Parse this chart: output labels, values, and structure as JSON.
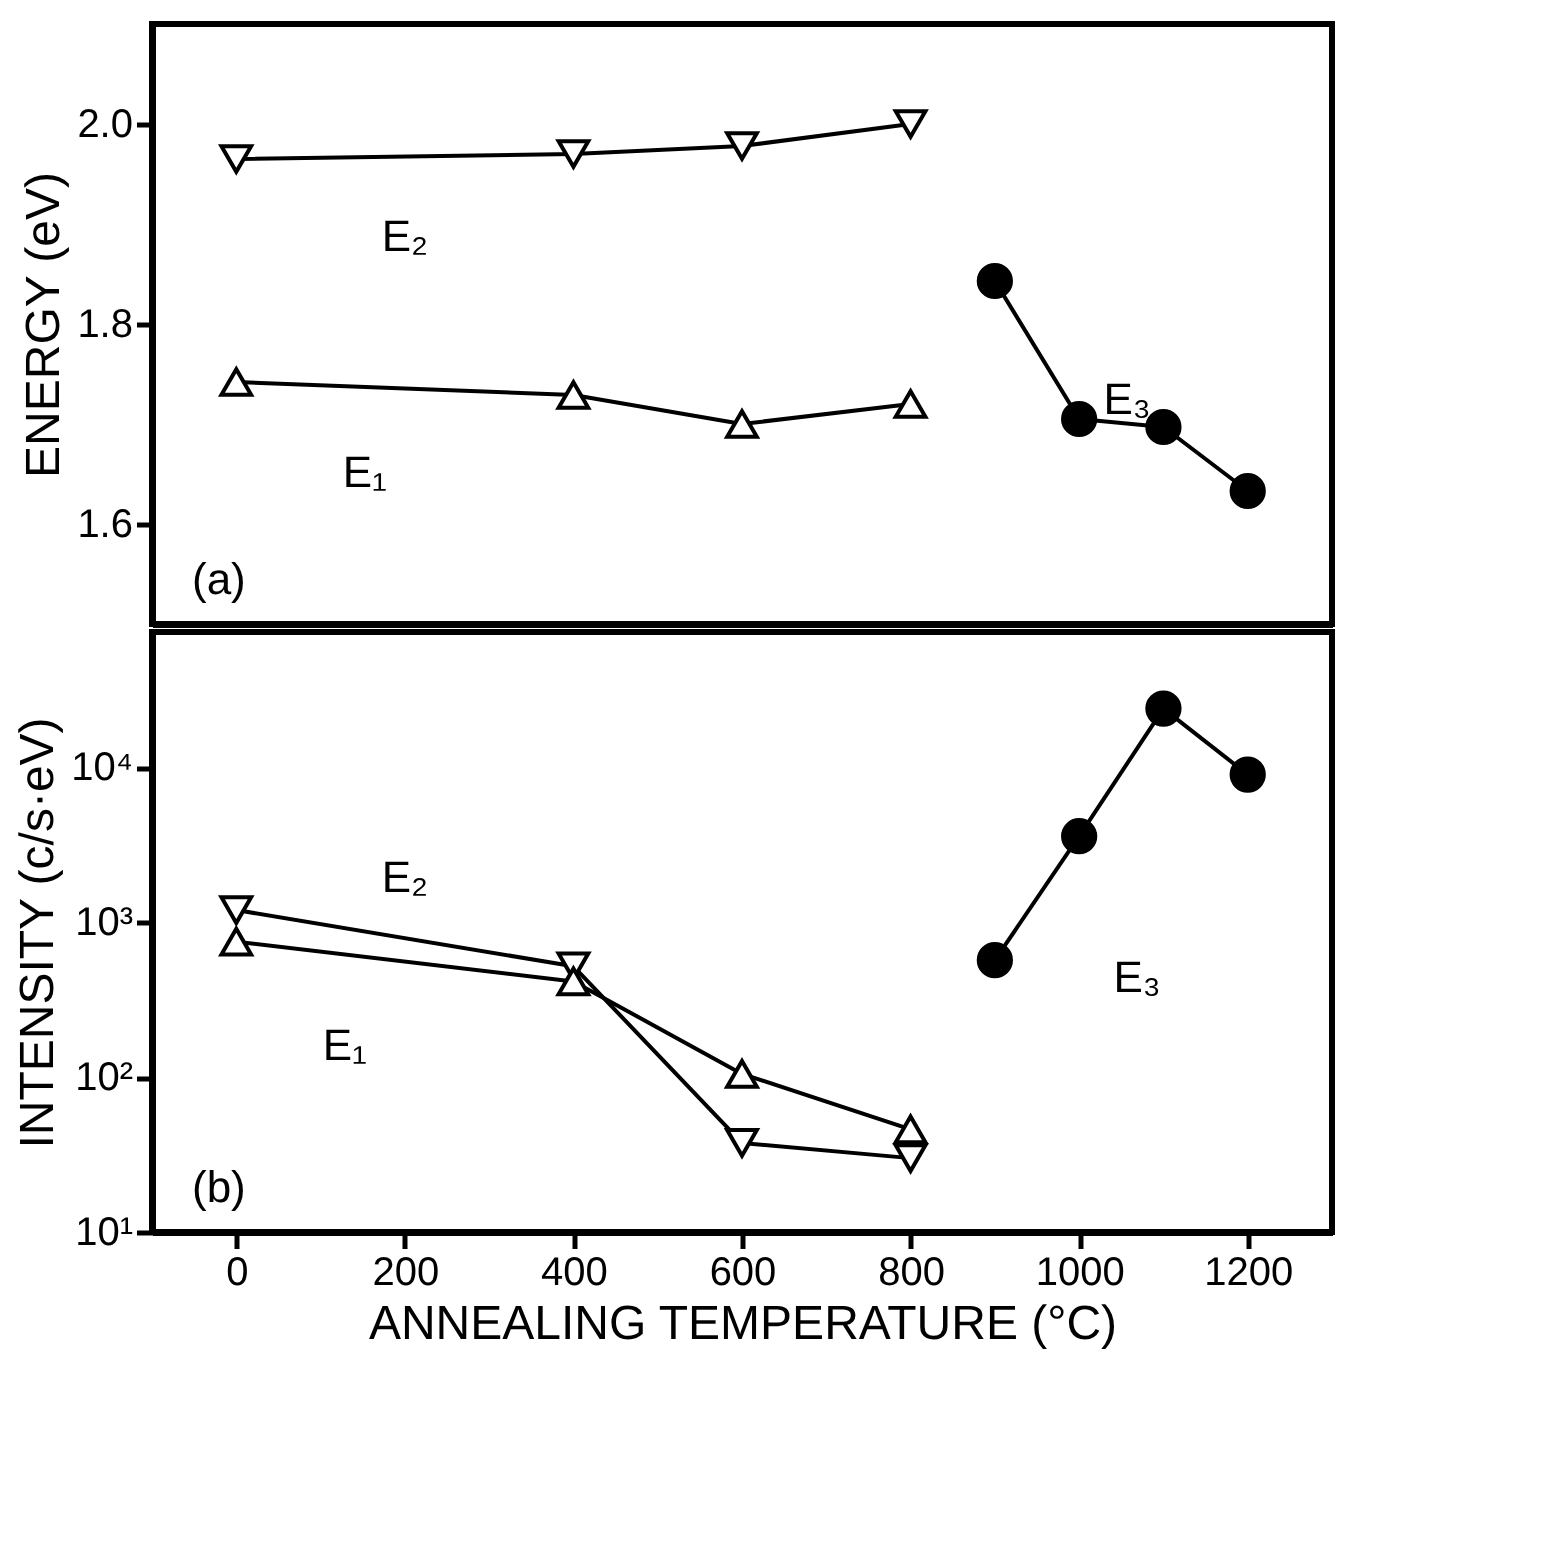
{
  "chart_data": [
    {
      "type": "line",
      "ylabel": "ENERGY (eV)",
      "xlim": [
        -100,
        1300
      ],
      "xticks": [
        0,
        200,
        400,
        600,
        800,
        1000,
        1200
      ],
      "ylim": [
        1.5,
        2.1
      ],
      "yticks": [
        {
          "value": 1.6,
          "label": "1.6"
        },
        {
          "value": 1.8,
          "label": "1.8"
        },
        {
          "value": 2.0,
          "label": "2.0"
        }
      ],
      "tick_labels": "y",
      "grid": false,
      "series": [
        {
          "name": "E₂",
          "color": "#000000",
          "marker": "triangle-down",
          "x": [
            0,
            400,
            600,
            800
          ],
          "values": [
            1.965,
            1.97,
            1.978,
            2.0
          ]
        },
        {
          "name": "E₁",
          "color": "#000000",
          "marker": "triangle",
          "x": [
            0,
            400,
            600,
            800
          ],
          "values": [
            1.742,
            1.729,
            1.7,
            1.72
          ]
        },
        {
          "name": "E₃",
          "color": "#000000",
          "marker": "circle",
          "x": [
            900,
            1000,
            1100,
            1200
          ],
          "values": [
            1.843,
            1.705,
            1.697,
            1.633
          ]
        }
      ],
      "annotations": [
        "(a)"
      ]
    },
    {
      "type": "line",
      "xlabel": "ANNEALING TEMPERATURE (°C)",
      "ylabel": "INTENSITY (c/s·eV)",
      "log": "y",
      "xlim": [
        -100,
        1300
      ],
      "xticks": [
        0,
        200,
        400,
        600,
        800,
        1000,
        1200
      ],
      "ylim": [
        10,
        75000
      ],
      "yticks": [
        {
          "value": 10,
          "label": "10¹"
        },
        {
          "value": 100,
          "label": "10²"
        },
        {
          "value": 1000,
          "label": "10³"
        },
        {
          "value": 10000,
          "label": "10⁴"
        }
      ],
      "grid": false,
      "series": [
        {
          "name": "E₂",
          "color": "#000000",
          "marker": "triangle-down",
          "x": [
            0,
            400,
            600,
            800
          ],
          "values": [
            1200,
            520,
            37.6,
            30
          ]
        },
        {
          "name": "E₁",
          "color": "#000000",
          "marker": "triangle",
          "x": [
            0,
            400,
            600,
            800
          ],
          "values": [
            750,
            415,
            105,
            46
          ]
        },
        {
          "name": "E₃",
          "color": "#000000",
          "marker": "circle",
          "x": [
            900,
            1000,
            1100,
            1200
          ],
          "values": [
            570,
            3600,
            24000,
            9000
          ]
        }
      ],
      "annotations": [
        "(b)"
      ]
    }
  ]
}
